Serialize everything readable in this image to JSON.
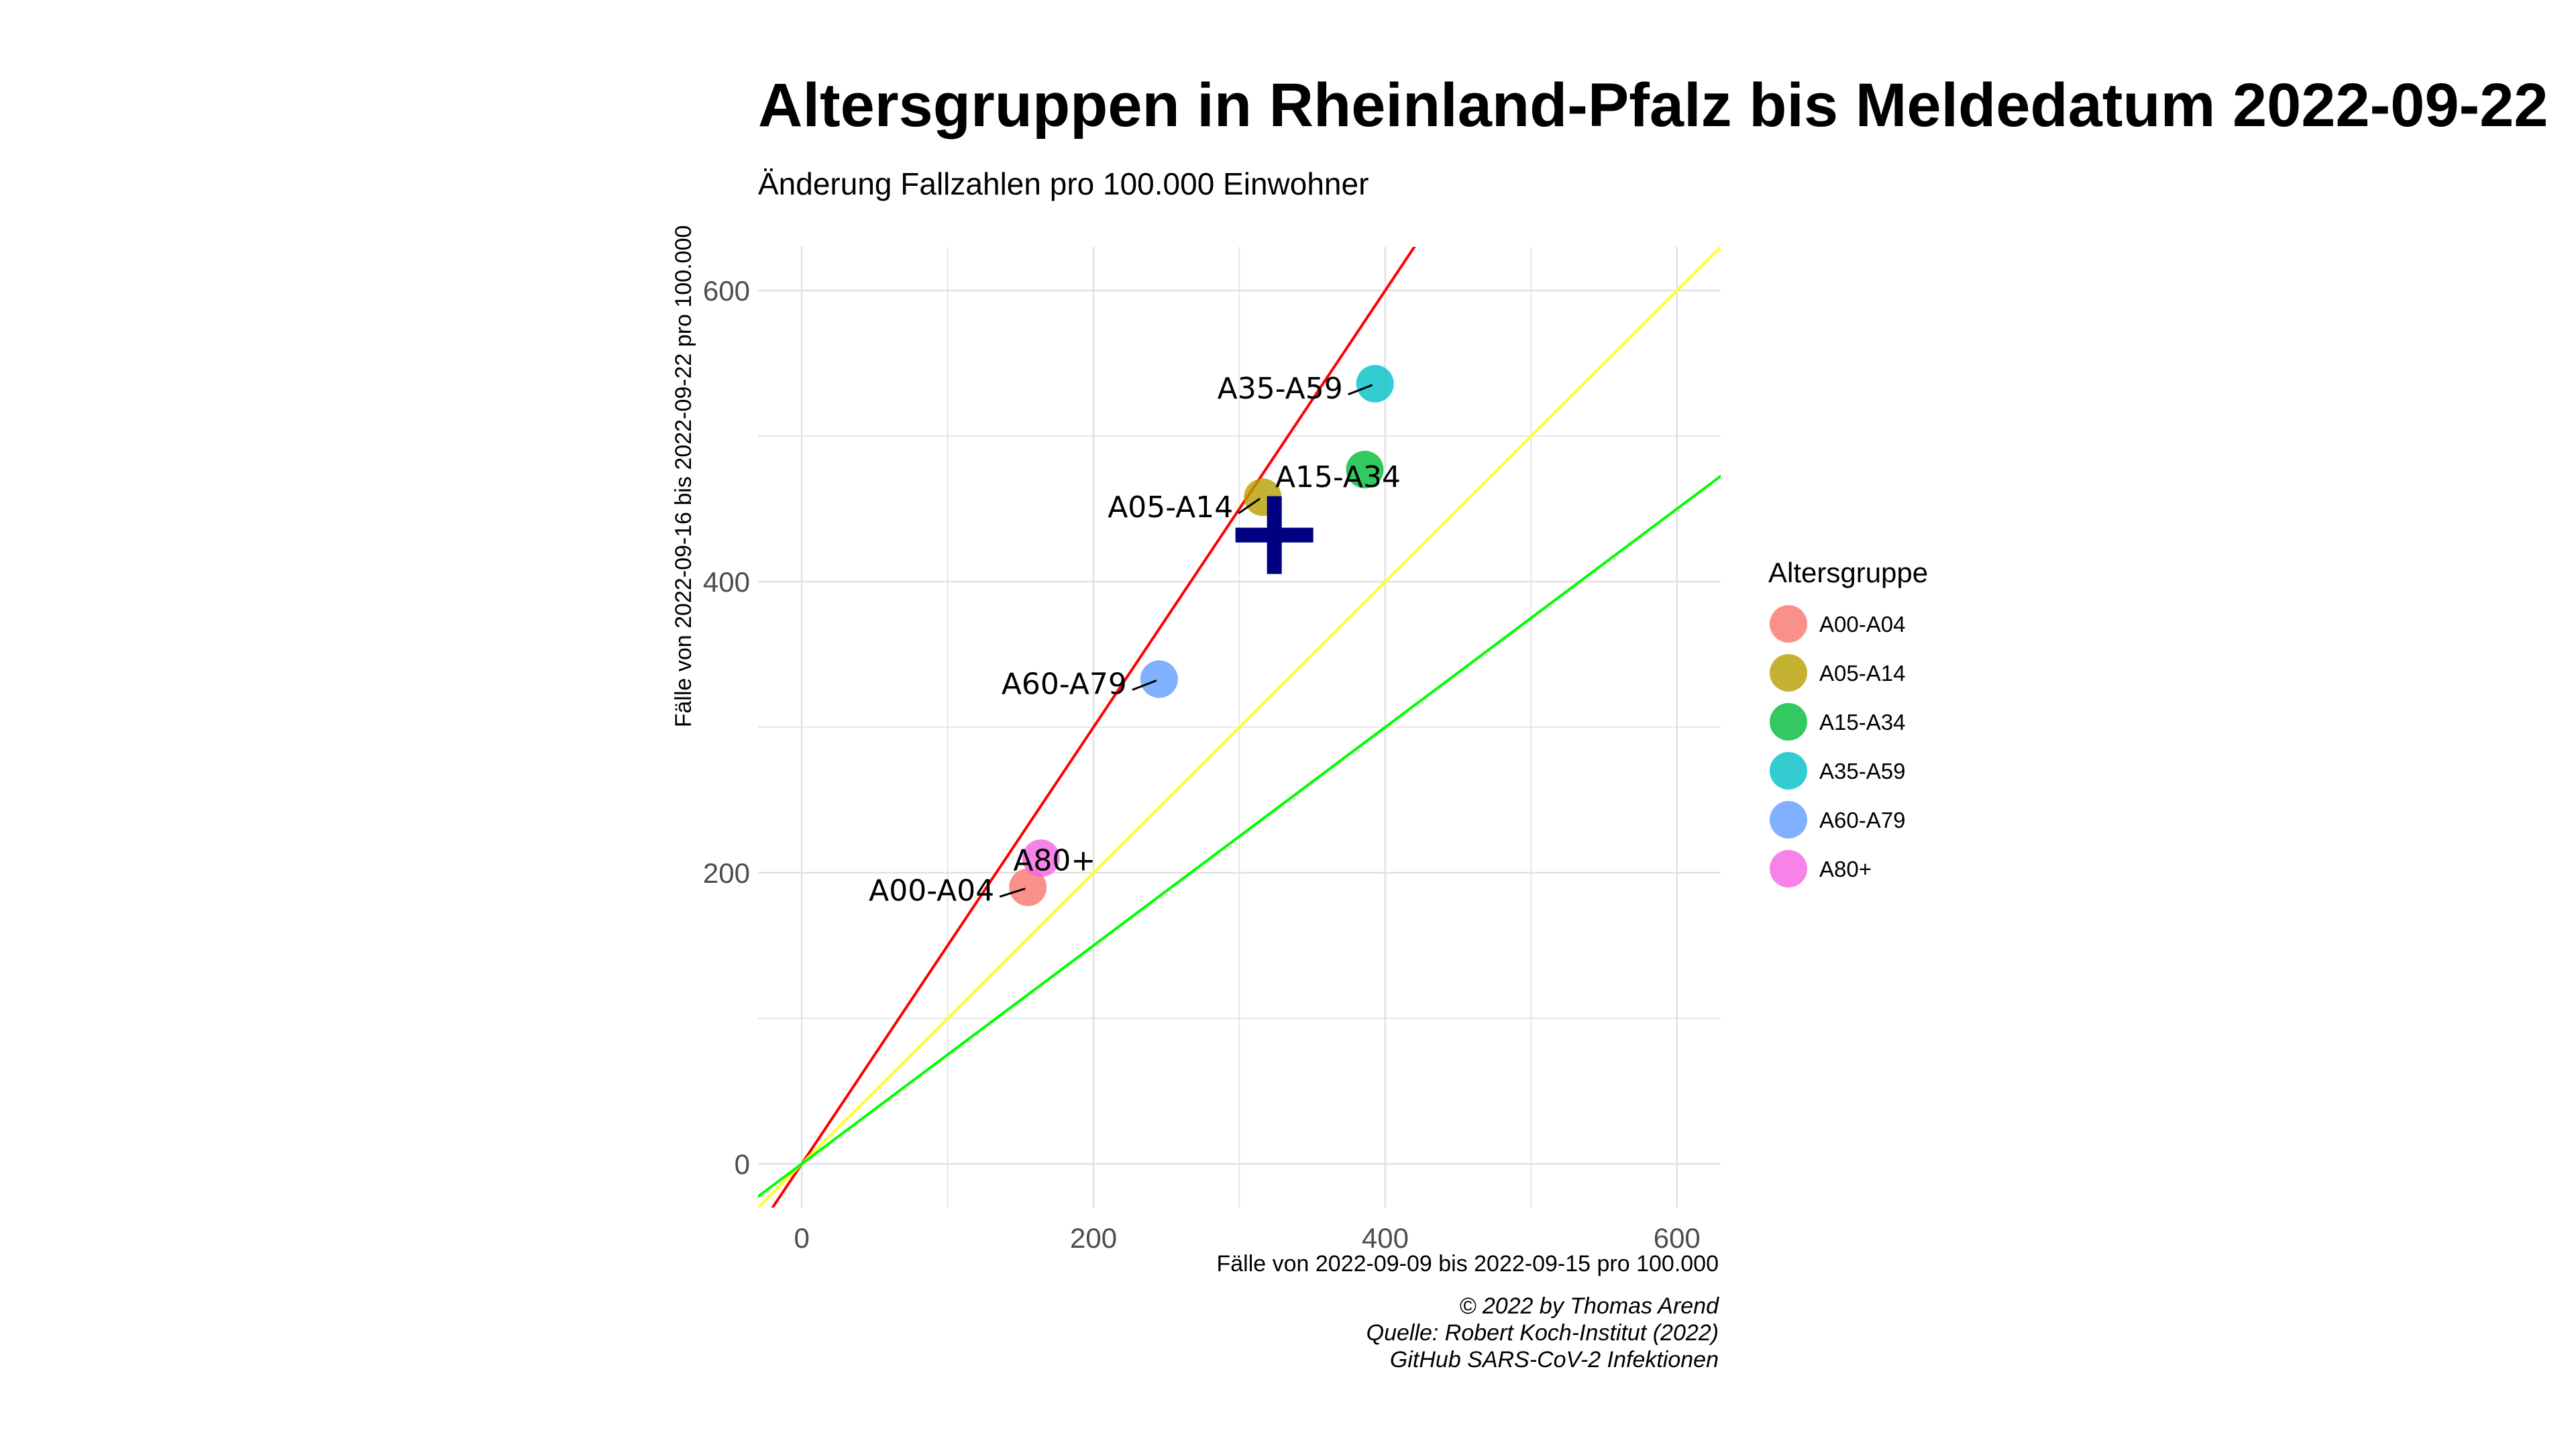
{
  "chart_data": {
    "type": "scatter",
    "title": "Altersgruppen in Rheinland-Pfalz bis Meldedatum 2022-09-22",
    "subtitle": "Änderung Fallzahlen pro 100.000 Einwohner",
    "xlabel": "Fälle von 2022-09-09 bis 2022-09-15 pro 100.000",
    "ylabel": "Fälle von 2022-09-16 bis 2022-09-22 pro 100.000",
    "xlim": [
      -30,
      630
    ],
    "ylim": [
      -30,
      630
    ],
    "x_ticks": [
      0,
      200,
      400,
      600
    ],
    "y_ticks": [
      0,
      200,
      400,
      600
    ],
    "grid": true,
    "legend_title": "Altersgruppe",
    "legend_position": "right",
    "series": [
      {
        "name": "A00-A04",
        "x": 155,
        "y": 190,
        "color": "#F8766D"
      },
      {
        "name": "A05-A14",
        "x": 316,
        "y": 458,
        "color": "#B79F00"
      },
      {
        "name": "A15-A34",
        "x": 386,
        "y": 477,
        "color": "#00BA38"
      },
      {
        "name": "A35-A59",
        "x": 393,
        "y": 536,
        "color": "#00BFC4"
      },
      {
        "name": "A60-A79",
        "x": 245,
        "y": 333,
        "color": "#619CFF"
      },
      {
        "name": "A80+",
        "x": 164,
        "y": 210,
        "color": "#F564E3"
      }
    ],
    "reference_lines": [
      {
        "slope": 1.5,
        "color": "#FF0000"
      },
      {
        "slope": 1.0,
        "color": "#FFFF33"
      },
      {
        "slope": 0.75,
        "color": "#00FF00"
      }
    ],
    "marker": {
      "x": 324,
      "y": 432,
      "color": "#000080"
    },
    "caption": [
      "© 2022 by Thomas Arend",
      "Quelle: Robert Koch-Institut (2022)",
      "GitHub SARS-CoV-2 Infektionen"
    ]
  }
}
